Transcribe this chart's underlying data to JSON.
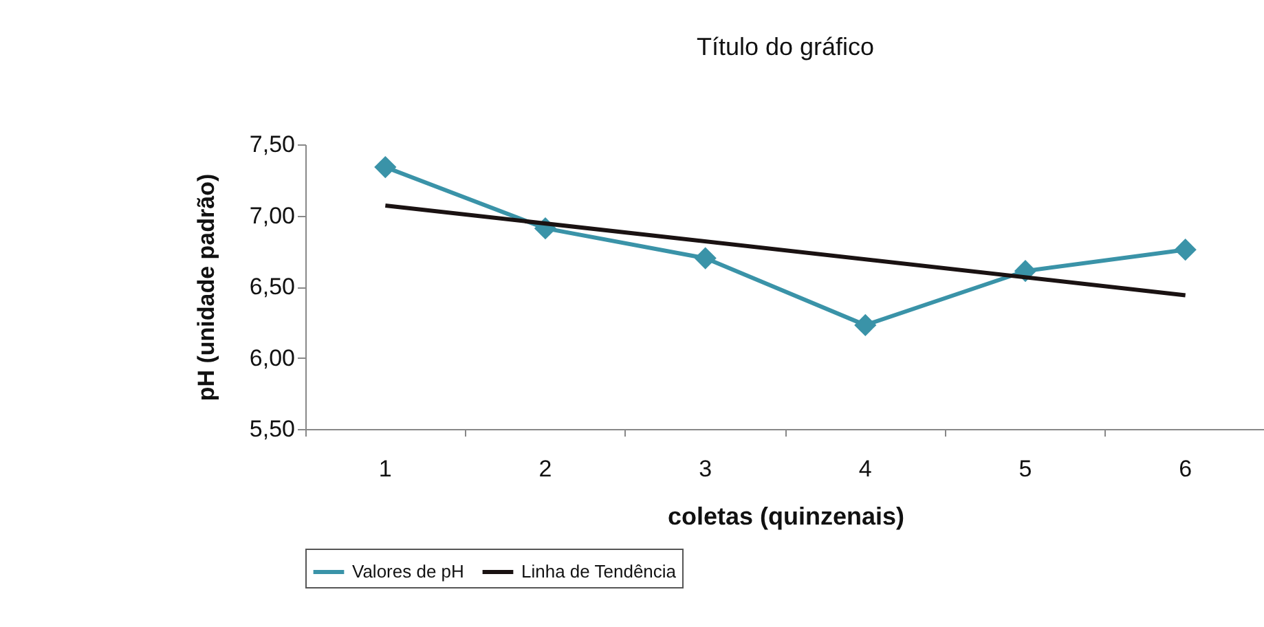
{
  "chart_data": {
    "type": "line",
    "title": "Título do gráfico",
    "xlabel": "coletas (quinzenais)",
    "ylabel": "pH (unidade padrão)",
    "categories": [
      "1",
      "2",
      "3",
      "4",
      "5",
      "6"
    ],
    "series": [
      {
        "name": "Valores de pH",
        "color": "#3a93a8",
        "marker": "diamond",
        "values": [
          7.34,
          6.91,
          6.7,
          6.23,
          6.61,
          6.76
        ]
      },
      {
        "name": "Linha de Tendência",
        "color": "#1a1212",
        "marker": "none",
        "x": [
          "1",
          "6"
        ],
        "values": [
          7.07,
          6.44
        ]
      }
    ],
    "ylim": [
      5.5,
      7.5
    ],
    "yticks": [
      {
        "value": 5.5,
        "label": "5,50"
      },
      {
        "value": 6,
        "label": "6,00"
      },
      {
        "value": 6.5,
        "label": "6,50"
      },
      {
        "value": 7,
        "label": "7,00"
      },
      {
        "value": 7.5,
        "label": "7,50"
      }
    ],
    "grid": false,
    "legend": "bottom"
  }
}
